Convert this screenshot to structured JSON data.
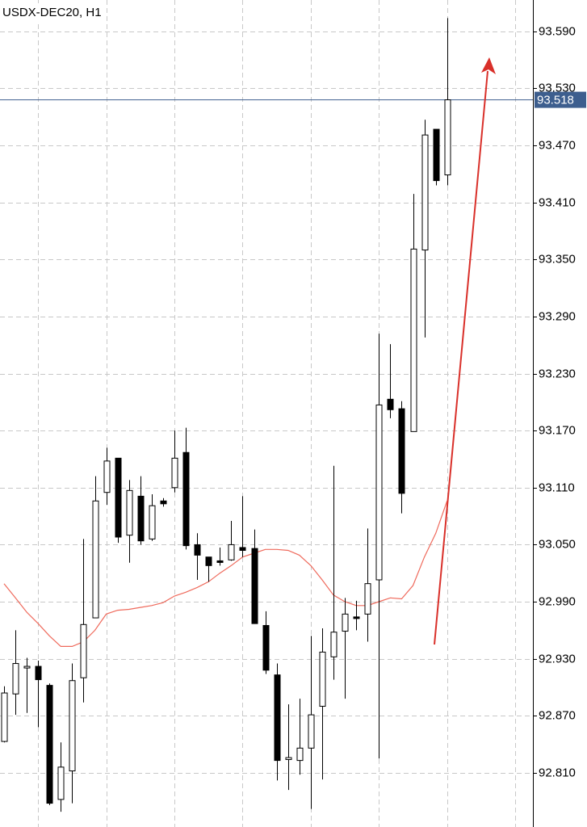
{
  "chart_data": {
    "type": "candlestick",
    "title": "USDX-DEC20, H1",
    "ylim": [
      92.753,
      93.623
    ],
    "yticks": [
      {
        "value": 93.59,
        "label": "93.590"
      },
      {
        "value": 93.53,
        "label": "93.530"
      },
      {
        "value": 93.47,
        "label": "93.470"
      },
      {
        "value": 93.41,
        "label": "93.410"
      },
      {
        "value": 93.35,
        "label": "93.350"
      },
      {
        "value": 93.29,
        "label": "93.290"
      },
      {
        "value": 93.23,
        "label": "93.230"
      },
      {
        "value": 93.17,
        "label": "93.170"
      },
      {
        "value": 93.11,
        "label": "93.110"
      },
      {
        "value": 93.05,
        "label": "93.050"
      },
      {
        "value": 92.99,
        "label": "92.990"
      },
      {
        "value": 92.93,
        "label": "92.930"
      },
      {
        "value": 92.87,
        "label": "92.870"
      },
      {
        "value": 92.81,
        "label": "92.810"
      }
    ],
    "grid": true,
    "up_color": "#ffffff",
    "down_color": "#000000",
    "ohlc": {
      "open": [
        92.843,
        92.893,
        92.921,
        92.922,
        92.902,
        92.782,
        92.812,
        92.91,
        92.973,
        93.105,
        93.141,
        93.06,
        93.101,
        93.056,
        93.096,
        93.11,
        93.147,
        93.05,
        93.037,
        93.033,
        93.034,
        93.047,
        93.046,
        92.965,
        92.913,
        92.824,
        92.823,
        92.836,
        92.88,
        92.932,
        92.959,
        92.974,
        92.977,
        93.013,
        93.203,
        93.193,
        93.169,
        93.36,
        93.487,
        93.439
      ],
      "high": [
        92.901,
        92.96,
        92.931,
        92.928,
        92.904,
        92.842,
        92.925,
        93.056,
        93.122,
        93.152,
        93.141,
        93.118,
        93.122,
        93.103,
        93.099,
        93.17,
        93.173,
        93.062,
        93.037,
        93.047,
        93.075,
        93.101,
        93.066,
        92.98,
        92.925,
        92.882,
        92.888,
        92.954,
        92.962,
        93.133,
        92.994,
        92.991,
        93.067,
        93.272,
        93.261,
        93.201,
        93.419,
        93.497,
        93.487,
        93.604
      ],
      "low": [
        92.842,
        92.871,
        92.873,
        92.858,
        92.776,
        92.769,
        92.778,
        92.884,
        92.973,
        93.092,
        93.052,
        93.031,
        93.05,
        93.054,
        93.09,
        93.105,
        93.045,
        93.013,
        93.011,
        93.028,
        93.033,
        93.037,
        92.967,
        92.914,
        92.802,
        92.792,
        92.808,
        92.772,
        92.803,
        92.908,
        92.888,
        92.96,
        92.948,
        92.825,
        93.183,
        93.083,
        93.169,
        93.268,
        93.428,
        93.428
      ],
      "close": [
        92.894,
        92.925,
        92.922,
        92.908,
        92.778,
        92.816,
        92.907,
        92.966,
        93.096,
        93.138,
        93.058,
        93.107,
        93.054,
        93.091,
        93.093,
        93.141,
        93.049,
        93.039,
        93.028,
        93.032,
        93.05,
        93.044,
        92.967,
        92.918,
        92.823,
        92.826,
        92.836,
        92.871,
        92.937,
        92.958,
        92.977,
        92.973,
        93.009,
        93.197,
        93.192,
        93.104,
        93.361,
        93.481,
        93.433,
        93.518
      ]
    },
    "moving_average": {
      "color": "#ef6a5c",
      "values": [
        93.009,
        92.994,
        92.979,
        92.967,
        92.954,
        92.943,
        92.943,
        92.948,
        92.96,
        92.977,
        92.981,
        92.982,
        92.984,
        92.986,
        92.989,
        92.996,
        93.0,
        93.005,
        93.011,
        93.02,
        93.028,
        93.037,
        93.041,
        93.045,
        93.045,
        93.044,
        93.039,
        93.028,
        93.013,
        92.997,
        92.99,
        92.986,
        92.986,
        92.99,
        92.994,
        92.993,
        93.007,
        93.037,
        93.062,
        93.096
      ]
    },
    "last_price": 93.518,
    "last_price_color": "#3d5e8e"
  }
}
